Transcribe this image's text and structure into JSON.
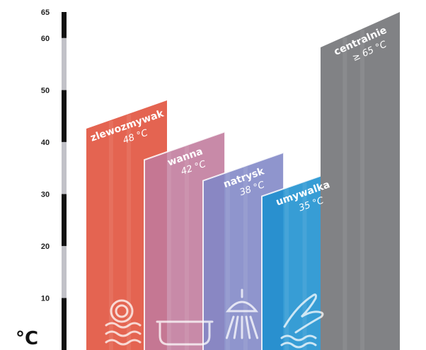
{
  "chart_data": {
    "type": "bar",
    "unit": "°C",
    "ylim": [
      0,
      65
    ],
    "yticks": [
      10,
      20,
      30,
      40,
      50,
      60,
      65
    ],
    "categories": [
      "zlewozmywak",
      "wanna",
      "natrysk",
      "umywalka",
      "centralnie"
    ],
    "values": [
      48,
      42,
      38,
      35,
      65
    ],
    "value_labels": [
      "48 °C",
      "42 °C",
      "38 °C",
      "35 °C",
      "≥ 65 °C"
    ],
    "colors": [
      "#e04e39",
      "#c07a9c",
      "#7f86c6",
      "#1b8fcf",
      "#818285"
    ],
    "icons": [
      "dishes-icon",
      "bathtub-icon",
      "shower-icon",
      "hand-washing-icon",
      ""
    ],
    "axis_band_colors": [
      "#111111",
      "#c2c2c8"
    ]
  }
}
